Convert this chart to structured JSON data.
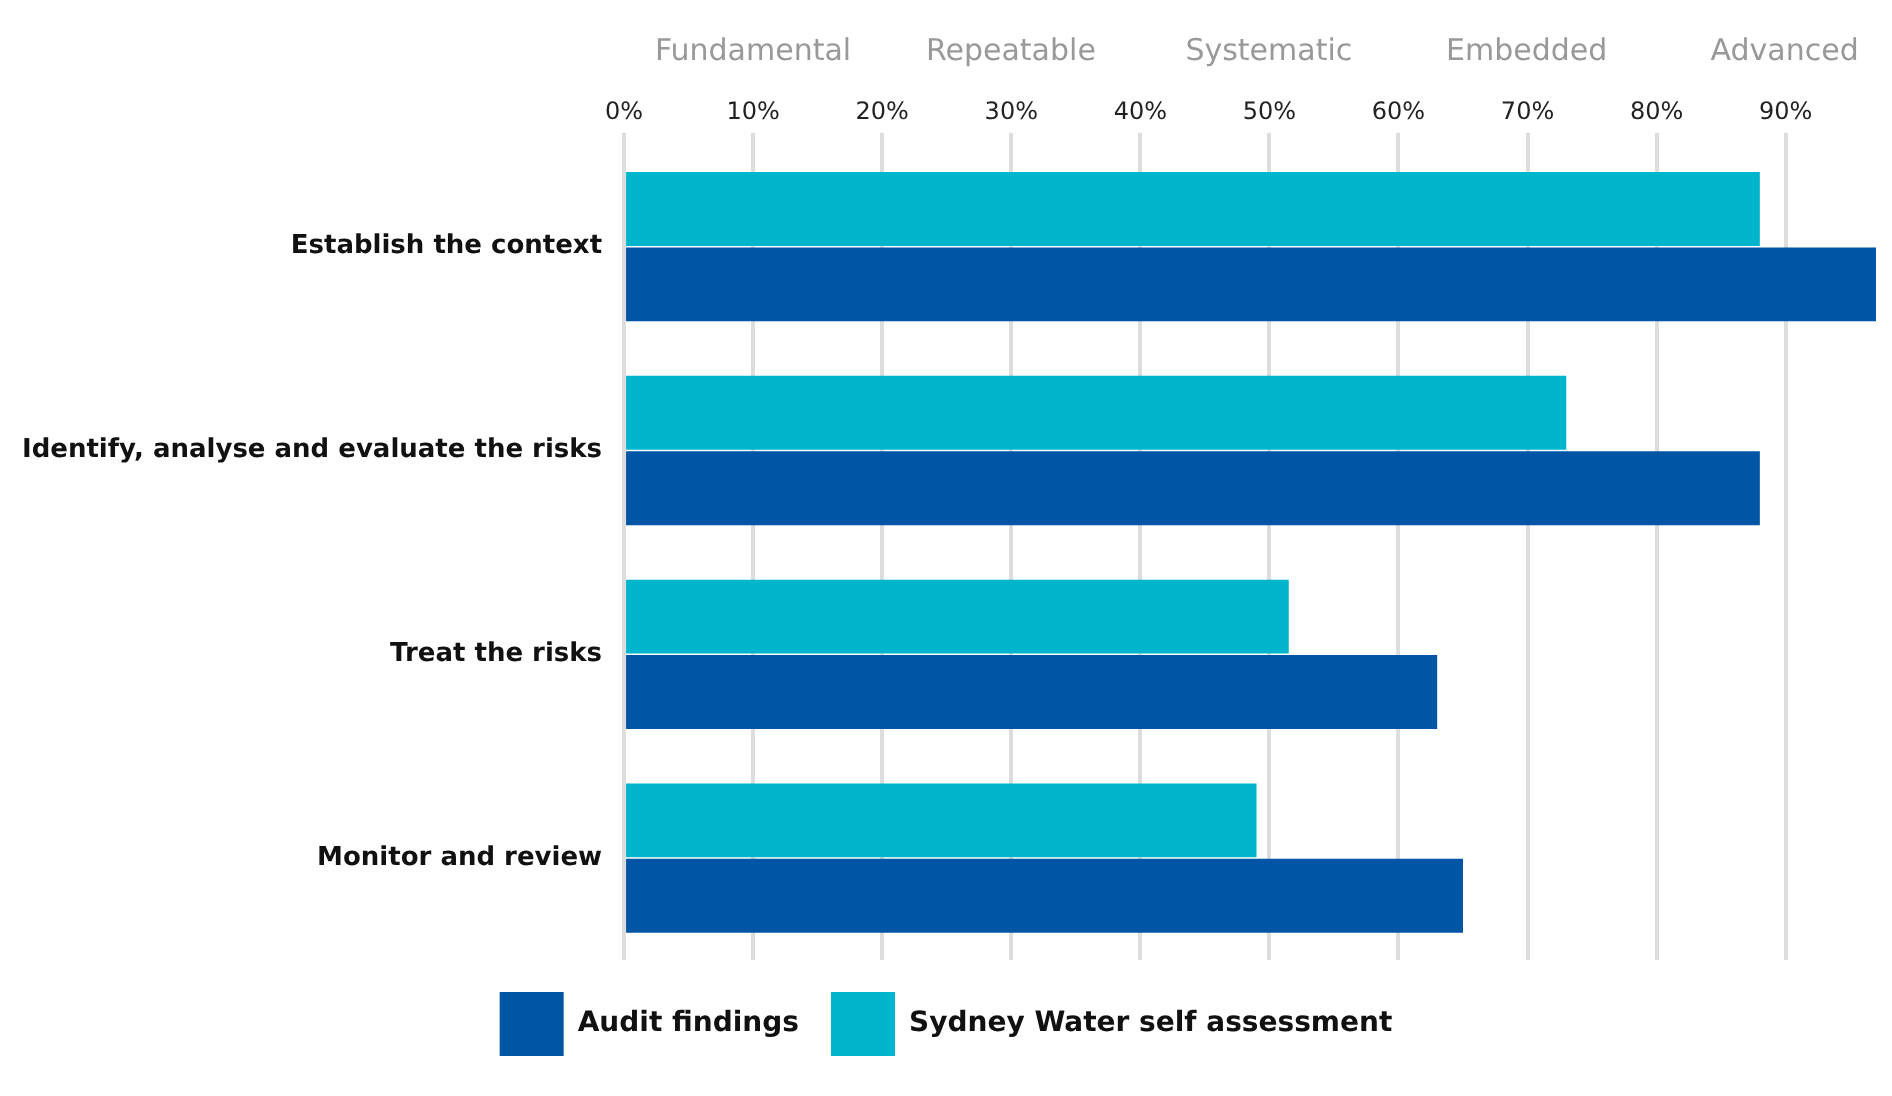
{
  "chart_data": {
    "type": "bar",
    "orientation": "horizontal",
    "categories": [
      "Establish the context",
      "Identify, analyse and evaluate the risks",
      "Treat the risks",
      "Monitor and review"
    ],
    "series": [
      {
        "name": "Sydney Water self assessment",
        "color": "#00b5cc",
        "values": [
          88,
          73,
          51.5,
          49
        ]
      },
      {
        "name": "Audit findings",
        "color": "#0055a5",
        "values": [
          97,
          88,
          63,
          65
        ]
      }
    ],
    "xlim": [
      0,
      97
    ],
    "xticks": [
      {
        "value": 0,
        "label": "0%"
      },
      {
        "value": 10,
        "label": "10%"
      },
      {
        "value": 20,
        "label": "20%"
      },
      {
        "value": 30,
        "label": "30%"
      },
      {
        "value": 40,
        "label": "40%"
      },
      {
        "value": 50,
        "label": "50%"
      },
      {
        "value": 60,
        "label": "60%"
      },
      {
        "value": 70,
        "label": "70%"
      },
      {
        "value": 80,
        "label": "80%"
      },
      {
        "value": 90,
        "label": "90%"
      }
    ],
    "annotations": [
      "Fundamental",
      "Repeatable",
      "Systematic",
      "Embedded",
      "Advanced"
    ],
    "grid": "x",
    "legend": "bottom"
  }
}
